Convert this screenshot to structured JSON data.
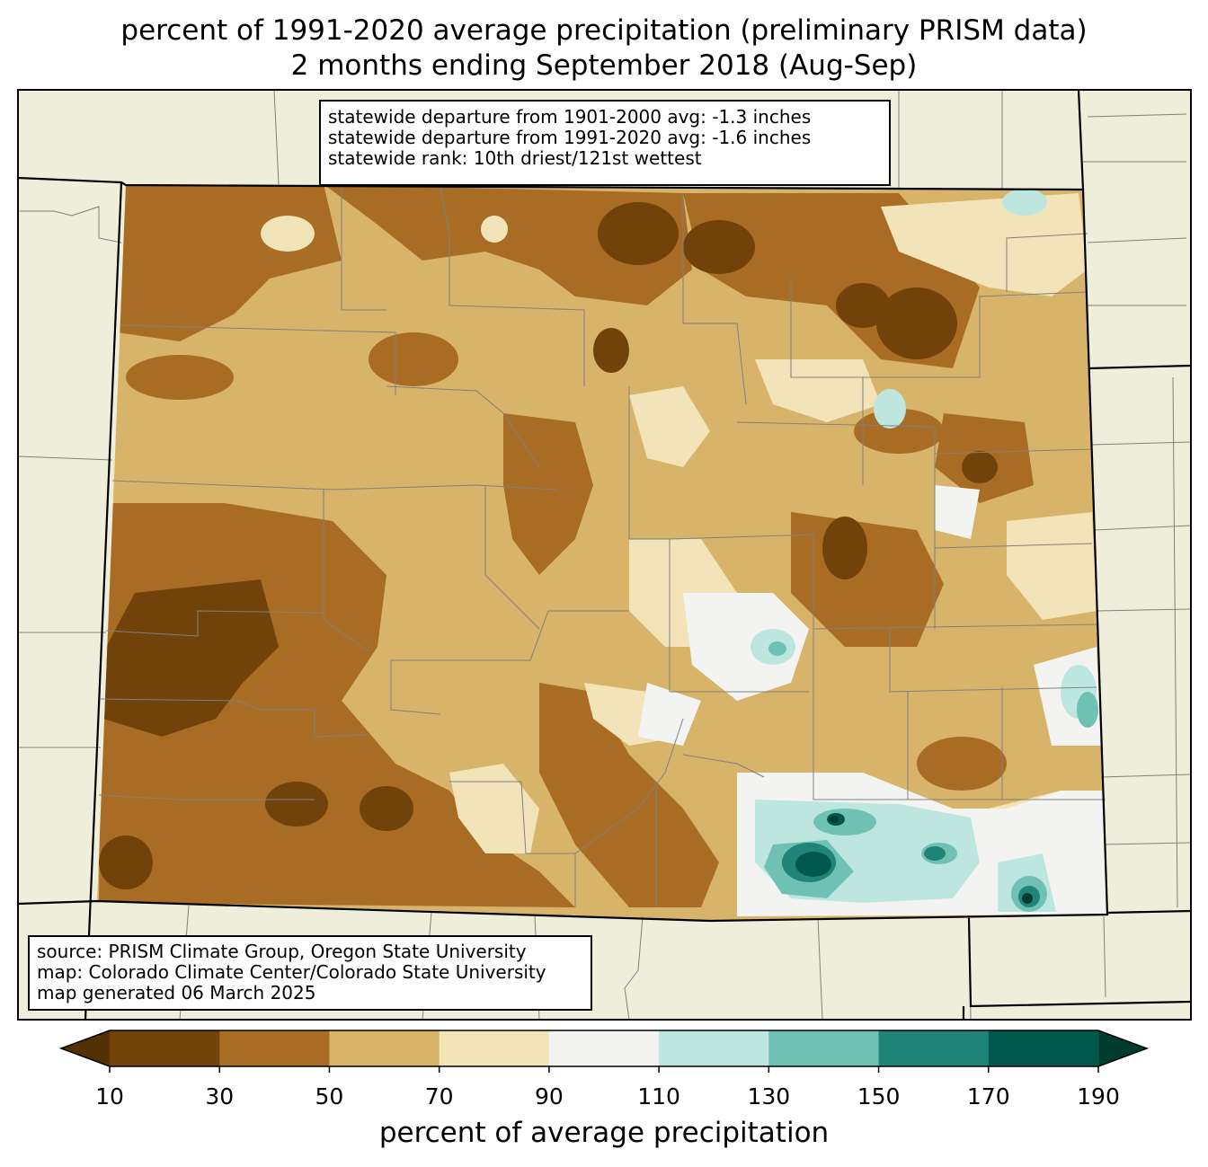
{
  "title_line1": "percent of 1991-2020 average precipitation (preliminary PRISM data)",
  "title_line2": "2 months ending September 2018 (Aug-Sep)",
  "stats": [
    "statewide departure from 1901-2000 avg: -1.3 inches",
    "statewide departure from 1991-2020 avg: -1.6 inches",
    "statewide rank: 10th driest/121st wettest"
  ],
  "source": [
    "source: PRISM Climate Group, Oregon State University",
    "map: Colorado Climate Center/Colorado State University",
    "map generated 06 March 2025"
  ],
  "colorbar": {
    "label": "percent of average precipitation",
    "ticks": [
      "10",
      "30",
      "50",
      "70",
      "90",
      "110",
      "130",
      "150",
      "170",
      "190"
    ],
    "under_color": "#543005",
    "over_color": "#003c30",
    "colors": [
      "#714209",
      "#a86c24",
      "#d8b46a",
      "#f3e3b9",
      "#f3f4f2",
      "#bde6df",
      "#6fc1b4",
      "#218479",
      "#00574c"
    ]
  },
  "map_colors": {
    "land_background": "#efeedb",
    "dominant": "#d8b46a"
  }
}
